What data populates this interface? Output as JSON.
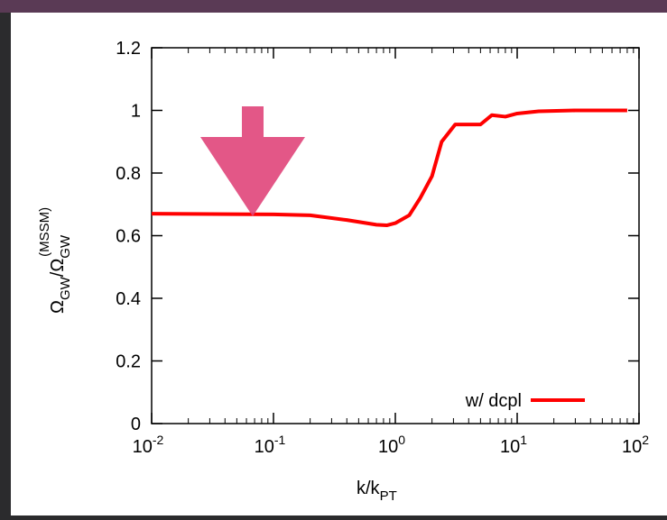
{
  "chart_data": {
    "type": "line",
    "x_label": [
      {
        "text": "k/k"
      },
      {
        "text": "PT",
        "style": "sub"
      }
    ],
    "y_label": [
      {
        "text": "Ω"
      },
      {
        "text": "GW",
        "style": "sub"
      },
      {
        "text": "/Ω"
      },
      {
        "text": "GW",
        "style": "sub"
      },
      {
        "text": "(MSSM)",
        "style": "sup"
      }
    ],
    "x": [
      0.01,
      0.1,
      0.2,
      0.4,
      0.7,
      0.85,
      1.0,
      1.3,
      1.6,
      2.0,
      2.4,
      3.1,
      4.5,
      5.0,
      6.2,
      8.0,
      10,
      15,
      30,
      80
    ],
    "series": [
      {
        "name": "w/ dcpl",
        "color": "#ff0000",
        "values": [
          0.67,
          0.668,
          0.665,
          0.65,
          0.635,
          0.633,
          0.64,
          0.665,
          0.72,
          0.79,
          0.9,
          0.955,
          0.955,
          0.955,
          0.985,
          0.98,
          0.99,
          0.997,
          1.0,
          1.0
        ]
      }
    ],
    "xscale": "log",
    "xlim": [
      0.01,
      100
    ],
    "xticks": [
      {
        "value": 0.01,
        "label": "10",
        "exponent": "-2"
      },
      {
        "value": 0.1,
        "label": "10",
        "exponent": "-1"
      },
      {
        "value": 1,
        "label": "10",
        "exponent": "0"
      },
      {
        "value": 10,
        "label": "10",
        "exponent": "1"
      },
      {
        "value": 100,
        "label": "10",
        "exponent": "2"
      }
    ],
    "ylim": [
      0,
      1.2
    ],
    "yticks": [
      0,
      0.2,
      0.4,
      0.6,
      0.8,
      1,
      1.2
    ],
    "legend": "bottom-right"
  }
}
